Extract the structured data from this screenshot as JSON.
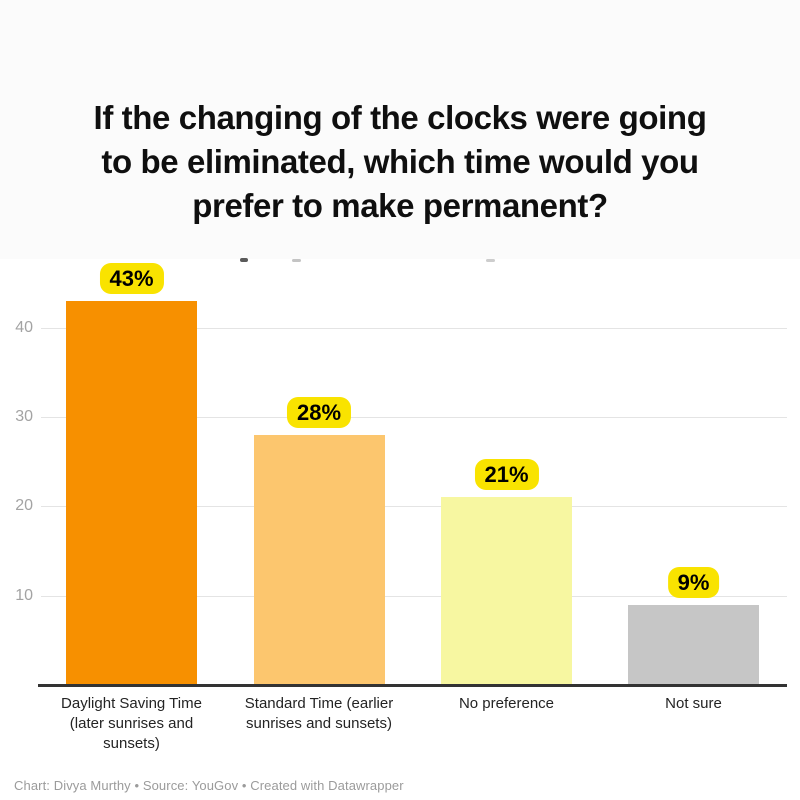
{
  "title": "If the changing of the clocks were going\nto be eliminated, which time would you\nprefer to make permanent?",
  "footer": {
    "text": "Chart: Divya Murthy • Source: YouGov • Created with Datawrapper"
  },
  "chart_data": {
    "type": "bar",
    "title": "If the changing of the clocks were going to be eliminated, which time would you prefer to make permanent?",
    "categories": [
      "Daylight Saving Time (later sunrises and sunsets)",
      "Standard Time (earlier sunrises and sunsets)",
      "No preference",
      "Not sure"
    ],
    "category_display": [
      "Daylight Saving Time\n(later sunrises and\nsunsets)",
      "Standard Time (earlier\nsunrises and sunsets)",
      "No preference",
      "Not sure"
    ],
    "values": [
      43,
      28,
      21,
      9
    ],
    "value_labels": [
      "43%",
      "28%",
      "21%",
      "9%"
    ],
    "unit": "%",
    "colors": [
      "#F79000",
      "#FCC66E",
      "#F7F7A1",
      "#C6C6C6"
    ],
    "value_badge_bg": "#F9E300",
    "value_badge_text_color": "#000000",
    "yticks": [
      {
        "label": "40",
        "value": 40
      },
      {
        "label": "30",
        "value": 30
      },
      {
        "label": "20",
        "value": 20
      },
      {
        "label": "10",
        "value": 10
      }
    ],
    "ylim": [
      0,
      47.5
    ],
    "xlabel": "",
    "ylabel": "",
    "grid": true,
    "legend_position": "none"
  }
}
